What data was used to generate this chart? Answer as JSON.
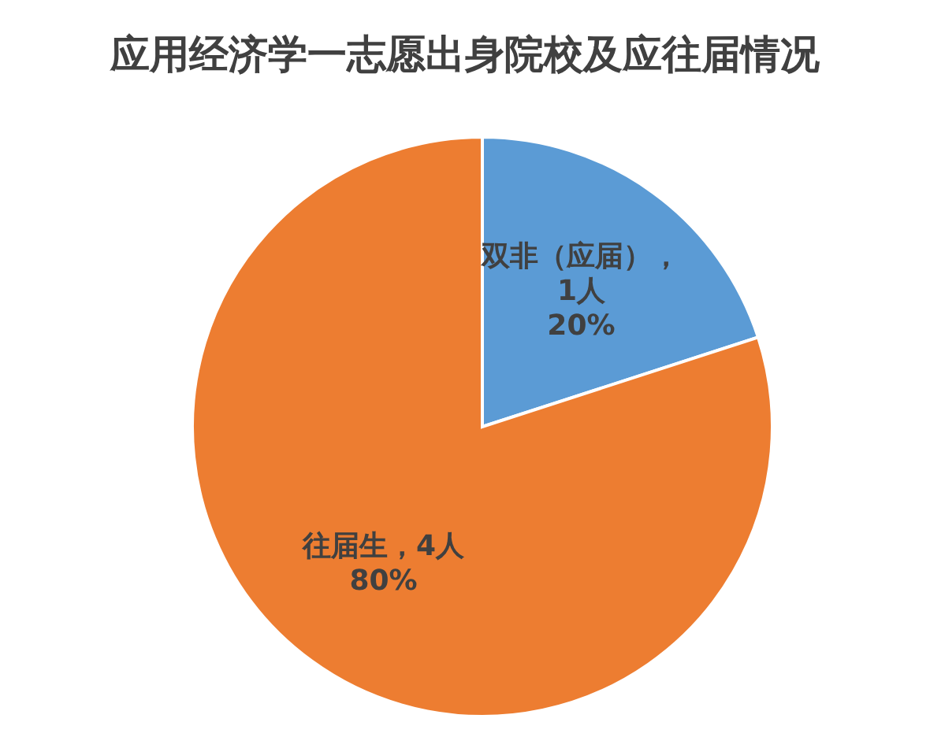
{
  "chart_data": {
    "type": "pie",
    "title": "应用经济学一志愿出身院校及应往届情况",
    "categories": [
      "双非（应届）",
      "往届生"
    ],
    "values": [
      1,
      4
    ],
    "colors": [
      "#5b9bd5",
      "#ed7d31"
    ],
    "value_labels": [
      "，\n1人\n20%",
      "，4人\n80%"
    ]
  }
}
